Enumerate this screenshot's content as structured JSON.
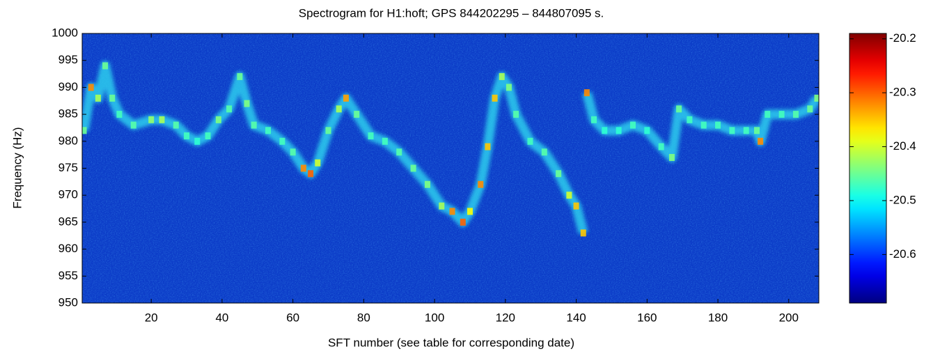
{
  "chart_data": {
    "type": "spectrogram",
    "title": "Spectrogram for H1:hoft; GPS 844202295 – 844807095 s.",
    "xlabel": "SFT number (see table for corresponding date)",
    "ylabel": "Frequency (Hz)",
    "xlim": [
      0.5,
      208.5
    ],
    "ylim": [
      950,
      1000
    ],
    "xticks": [
      20,
      40,
      60,
      80,
      100,
      120,
      140,
      160,
      180,
      200
    ],
    "yticks": [
      950,
      955,
      960,
      965,
      970,
      975,
      980,
      985,
      990,
      995,
      1000
    ],
    "x": [
      1,
      3,
      5,
      7,
      9,
      11,
      15,
      20,
      23,
      27,
      30,
      33,
      36,
      39,
      42,
      45,
      47,
      49,
      53,
      57,
      60,
      63,
      65,
      67,
      70,
      73,
      75,
      78,
      82,
      86,
      90,
      94,
      98,
      102,
      105,
      108,
      110,
      113,
      115,
      117,
      119,
      121,
      123,
      127,
      131,
      135,
      138,
      140,
      142,
      142.5,
      143,
      145,
      148,
      152,
      156,
      160,
      164,
      167,
      169,
      172,
      176,
      180,
      184,
      188,
      191,
      192,
      194,
      198,
      202,
      206,
      208
    ],
    "values": [
      982,
      990,
      988,
      994,
      988,
      985,
      983,
      984,
      984,
      983,
      981,
      980,
      981,
      984,
      986,
      992,
      987,
      983,
      982,
      980,
      978,
      975,
      974,
      976,
      982,
      986,
      988,
      985,
      981,
      980,
      978,
      975,
      972,
      968,
      967,
      965,
      967,
      972,
      979,
      988,
      992,
      990,
      985,
      980,
      978,
      974,
      970,
      968,
      963,
      null,
      989,
      984,
      982,
      982,
      983,
      982,
      979,
      977,
      986,
      984,
      983,
      983,
      982,
      982,
      982,
      980,
      985,
      985,
      985,
      986,
      988
    ],
    "intensity": [
      -20.45,
      -20.32,
      -20.42,
      -20.45,
      -20.45,
      -20.47,
      -20.46,
      -20.43,
      -20.42,
      -20.46,
      -20.47,
      -20.48,
      -20.47,
      -20.44,
      -20.46,
      -20.45,
      -20.44,
      -20.46,
      -20.47,
      -20.47,
      -20.46,
      -20.32,
      -20.3,
      -20.4,
      -20.45,
      -20.42,
      -20.33,
      -20.45,
      -20.47,
      -20.47,
      -20.46,
      -20.45,
      -20.44,
      -20.42,
      -20.32,
      -20.3,
      -20.38,
      -20.32,
      -20.35,
      -20.35,
      -20.42,
      -20.44,
      -20.46,
      -20.47,
      -20.46,
      -20.45,
      -20.4,
      -20.35,
      -20.35,
      null,
      -20.32,
      -20.47,
      -20.48,
      -20.48,
      -20.47,
      -20.48,
      -20.47,
      -20.44,
      -20.45,
      -20.47,
      -20.47,
      -20.47,
      -20.47,
      -20.47,
      -20.45,
      -20.32,
      -20.47,
      -20.47,
      -20.46,
      -20.45,
      -20.44
    ],
    "colorbar": {
      "clim": [
        -20.69,
        -20.19
      ],
      "ticks": [
        -20.6,
        -20.5,
        -20.4,
        -20.3,
        -20.2
      ]
    }
  }
}
